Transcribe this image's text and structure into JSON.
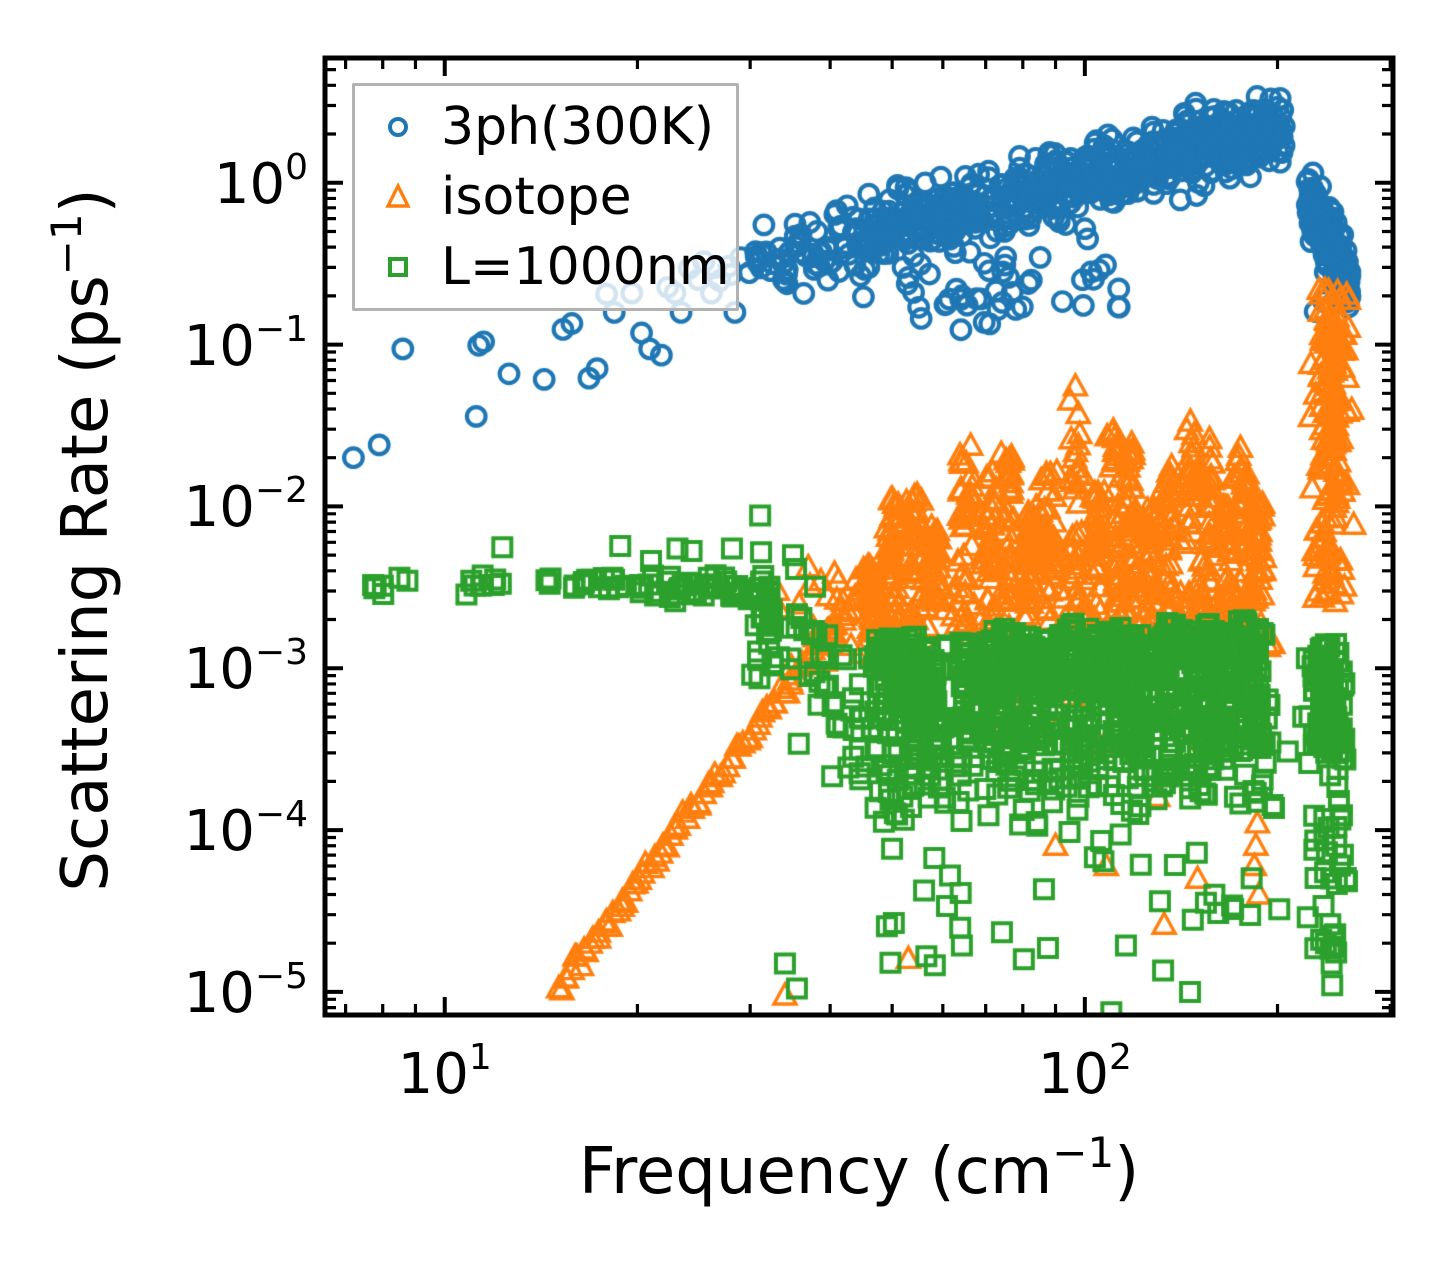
{
  "chart_data": {
    "type": "scatter",
    "title": "",
    "xlabel": {
      "text": "Frequency (cm",
      "sup": "−1",
      "suffix": ")"
    },
    "ylabel": {
      "text": "Scattering Rate (ps",
      "sup": "−1",
      "suffix": ")"
    },
    "x_axis": {
      "scale": "log",
      "min": 6.5,
      "max": 303,
      "major_ticks": [
        10,
        100
      ],
      "major_tick_labels": [
        {
          "base": "10",
          "exp": "1"
        },
        {
          "base": "10",
          "exp": "2"
        }
      ],
      "minor_ticks": [
        7,
        8,
        9,
        20,
        30,
        40,
        50,
        60,
        70,
        80,
        90,
        200,
        300
      ]
    },
    "y_axis": {
      "scale": "log",
      "min": 7.2e-06,
      "max": 5.9,
      "major_ticks": [
        1,
        0.1,
        0.01,
        0.001,
        0.0001,
        1e-05
      ],
      "major_tick_labels": [
        {
          "base": "10",
          "exp": "0"
        },
        {
          "base": "10",
          "exp": "−1"
        },
        {
          "base": "10",
          "exp": "−2"
        },
        {
          "base": "10",
          "exp": "−3"
        },
        {
          "base": "10",
          "exp": "−4"
        },
        {
          "base": "10",
          "exp": "−5"
        }
      ],
      "minor_mantissas": [
        2,
        3,
        4,
        5,
        6,
        7,
        8,
        9
      ]
    },
    "legend": {
      "position": "upper-left",
      "entries": [
        "3ph(300K)",
        "isotope",
        "L=1000nm"
      ]
    },
    "series": [
      {
        "name": "3ph(300K)",
        "marker": "circle",
        "color": "#1f77b4",
        "points": [
          [
            7.2,
            0.02
          ],
          [
            7.9,
            0.024
          ],
          [
            8.6,
            0.094
          ],
          [
            11.2,
            0.036
          ],
          [
            11.3,
            0.099
          ],
          [
            11.5,
            0.104
          ],
          [
            12.6,
            0.066
          ],
          [
            14.3,
            0.061
          ],
          [
            15.3,
            0.124
          ],
          [
            15.8,
            0.135
          ],
          [
            16.8,
            0.062
          ],
          [
            17.3,
            0.071
          ],
          [
            17.9,
            0.205
          ],
          [
            18.4,
            0.158
          ],
          [
            19.6,
            0.208
          ],
          [
            20.3,
            0.118
          ],
          [
            20.9,
            0.094
          ],
          [
            21.8,
            0.086
          ],
          [
            22.3,
            0.226
          ],
          [
            22.9,
            0.208
          ],
          [
            23.4,
            0.158
          ],
          [
            24.1,
            0.295
          ],
          [
            24.9,
            0.252
          ],
          [
            25.4,
            0.325
          ],
          [
            26.1,
            0.208
          ],
          [
            26.5,
            0.3
          ],
          [
            26.9,
            0.248
          ],
          [
            27.8,
            0.305
          ],
          [
            28.0,
            0.27
          ],
          [
            28.4,
            0.158
          ],
          [
            29.0,
            0.345
          ],
          [
            29.9,
            0.278
          ],
          [
            30.6,
            0.375
          ],
          [
            31.2,
            0.298
          ],
          [
            52,
            0.3
          ],
          [
            53,
            0.26
          ],
          [
            54,
            0.21
          ],
          [
            55,
            0.17
          ],
          [
            55.5,
            0.145
          ],
          [
            63,
            0.22
          ],
          [
            64,
            0.19
          ],
          [
            75,
            0.31
          ],
          [
            76,
            0.26
          ],
          [
            77,
            0.21
          ],
          [
            78,
            0.165
          ],
          [
            100,
            0.52
          ],
          [
            101,
            0.45
          ],
          [
            229,
            0.16
          ],
          [
            236,
            0.185
          ],
          [
            242,
            0.175
          ]
        ],
        "clusters": [
          {
            "kind": "band",
            "n": 650,
            "f": [
              30,
              205
            ],
            "logr": [
              -0.52,
              0.35
            ],
            "bias": 0.7,
            "sigma": 0.11
          },
          {
            "kind": "uniform",
            "n": 28,
            "f": [
              45,
              115
            ],
            "logr": [
              -0.78,
              -0.45
            ]
          },
          {
            "kind": "uniform",
            "n": 6,
            "f": [
              60,
              82
            ],
            "logr": [
              -0.92,
              -0.72
            ]
          },
          {
            "kind": "band",
            "n": 150,
            "f": [
              222,
              260
            ],
            "logr": [
              -0.06,
              -0.66
            ],
            "bias": 0.9,
            "sigma": 0.11
          }
        ]
      },
      {
        "name": "isotope",
        "marker": "triangle",
        "color": "#ff7f0e",
        "points": [
          [
            53,
            1.6e-05
          ],
          [
            34,
            9.5e-06
          ],
          [
            90,
            8e-05
          ],
          [
            108,
            6e-05
          ],
          [
            130,
            0.00016
          ],
          [
            133,
            2.6e-05
          ],
          [
            150,
            5e-05
          ],
          [
            184,
            6e-05
          ],
          [
            185,
            8e-05
          ],
          [
            186,
            0.00011
          ],
          [
            187,
            4e-05
          ],
          [
            176,
            0.0009
          ]
        ],
        "clusters": [
          {
            "kind": "line",
            "n": 95,
            "f": [
              15,
              46
            ],
            "logr": [
              -4.97,
              -2.45
            ],
            "sigma": 0.025
          },
          {
            "kind": "uniform",
            "n": 28,
            "f": [
              33,
              52
            ],
            "logr": [
              -3.1,
              -2.35
            ]
          },
          {
            "kind": "columns",
            "n_each": 38,
            "fjit": 0.006,
            "pow": 0.7,
            "items": [
              [
                46.5,
                -2.75,
                -2.35
              ],
              [
                50,
                -2.8,
                -1.93
              ],
              [
                54,
                -2.85,
                -1.92
              ],
              [
                58,
                -2.8,
                -2.1
              ],
              [
                65,
                -2.85,
                -1.62
              ],
              [
                71,
                -2.8,
                -1.75
              ],
              [
                76,
                -2.8,
                -1.64
              ],
              [
                82,
                -2.75,
                -2.0
              ],
              [
                88,
                -2.8,
                -1.78
              ],
              [
                97,
                -2.9,
                -1.24
              ],
              [
                104,
                -2.8,
                -1.9
              ],
              [
                112,
                -2.85,
                -1.52
              ],
              [
                118,
                -2.8,
                -1.6
              ],
              [
                127,
                -2.85,
                -2.0
              ],
              [
                136,
                -2.8,
                -1.75
              ],
              [
                147,
                -2.9,
                -1.45
              ],
              [
                156,
                -2.85,
                -1.52
              ],
              [
                166,
                -2.8,
                -2.0
              ],
              [
                176,
                -2.85,
                -1.62
              ],
              [
                186,
                -2.6,
                -1.95
              ]
            ]
          },
          {
            "kind": "uniform",
            "n": 120,
            "f": [
              46,
              200
            ],
            "logr": [
              -3.0,
              -2.45
            ]
          },
          {
            "kind": "uniform",
            "n": 25,
            "f": [
              50,
              200
            ],
            "logr": [
              -3.5,
              -3.0
            ]
          },
          {
            "kind": "column",
            "fc": 242,
            "fjit": 0.014,
            "n": 140,
            "logr": [
              -2.2,
              -0.63
            ],
            "pow": 0.65
          },
          {
            "kind": "uniform",
            "n": 30,
            "f": [
              228,
              256
            ],
            "logr": [
              -2.6,
              -2.1
            ]
          }
        ]
      },
      {
        "name": "L=1000nm",
        "marker": "square",
        "color": "#2ca02c",
        "points": [
          [
            12.3,
            0.0056
          ],
          [
            18.8,
            0.0057
          ],
          [
            21.0,
            0.0046
          ],
          [
            23.1,
            0.0055
          ],
          [
            24.3,
            0.0053
          ],
          [
            28.1,
            0.0055
          ],
          [
            31.2,
            0.0052
          ],
          [
            35.0,
            0.005
          ],
          [
            34,
            1.5e-05
          ],
          [
            35.5,
            1.05e-05
          ],
          [
            234,
            2.1e-05
          ],
          [
            236,
            3.4e-05
          ],
          [
            238,
            2e-05
          ],
          [
            242,
            1.85e-05
          ],
          [
            243,
            1.5e-05
          ],
          [
            243.5,
            1.1e-05
          ],
          [
            245,
            1.9e-05
          ],
          [
            247,
            1.75e-05
          ],
          [
            110,
            7.5e-06
          ],
          [
            146,
            1e-05
          ]
        ],
        "clusters": [
          {
            "kind": "band",
            "n": 7,
            "f": [
              7.1,
              8.8
            ],
            "logr": [
              -2.47,
              -2.49
            ],
            "bias": 1,
            "sigma": 0.035
          },
          {
            "kind": "band",
            "n": 8,
            "f": [
              10.8,
              12.4
            ],
            "logr": [
              -2.48,
              -2.48
            ],
            "bias": 1,
            "sigma": 0.03
          },
          {
            "kind": "band",
            "n": 16,
            "f": [
              14.4,
              19.2
            ],
            "logr": [
              -2.47,
              -2.48
            ],
            "bias": 1,
            "sigma": 0.025
          },
          {
            "kind": "band",
            "n": 45,
            "f": [
              19.8,
              33
            ],
            "logr": [
              -2.48,
              -2.53
            ],
            "bias": 1,
            "sigma": 0.04
          },
          {
            "kind": "band",
            "n": 70,
            "f": [
              30,
              45
            ],
            "logr": [
              -2.55,
              -3.35
            ],
            "bias": 1,
            "sigma": 0.22
          },
          {
            "kind": "column",
            "fc": 50,
            "fjit": 0.02,
            "n": 70,
            "logr": [
              -4.1,
              -2.8
            ],
            "pow": 0.5
          },
          {
            "kind": "columns",
            "n_each": 48,
            "fjit": 0.01,
            "pow": 0.55,
            "items": [
              [
                54,
                -3.9,
                -2.82
              ],
              [
                58,
                -3.8,
                -2.85
              ],
              [
                65,
                -3.9,
                -2.78
              ],
              [
                71,
                -3.85,
                -2.8
              ],
              [
                76,
                -3.8,
                -2.75
              ],
              [
                82,
                -3.9,
                -2.8
              ],
              [
                88,
                -3.85,
                -2.78
              ],
              [
                97,
                -3.9,
                -2.72
              ],
              [
                104,
                -3.8,
                -2.78
              ],
              [
                112,
                -3.85,
                -2.75
              ],
              [
                118,
                -3.8,
                -2.78
              ],
              [
                127,
                -3.9,
                -2.8
              ],
              [
                136,
                -3.85,
                -2.72
              ],
              [
                147,
                -3.9,
                -2.75
              ],
              [
                156,
                -3.8,
                -2.72
              ],
              [
                166,
                -3.85,
                -2.78
              ],
              [
                176,
                -3.8,
                -2.7
              ],
              [
                186,
                -3.9,
                -2.75
              ]
            ]
          },
          {
            "kind": "uniform",
            "n": 90,
            "f": [
              46,
              210
            ],
            "logr": [
              -4.4,
              -3.0
            ]
          },
          {
            "kind": "uniform",
            "n": 26,
            "f": [
              48,
              260
            ],
            "logr": [
              -4.95,
              -4.4
            ]
          },
          {
            "kind": "column",
            "fc": 240,
            "fjit": 0.015,
            "n": 95,
            "logr": [
              -3.65,
              -2.84
            ],
            "pow": 0.8
          },
          {
            "kind": "uniform",
            "n": 22,
            "f": [
              228,
              258
            ],
            "logr": [
              -4.4,
              -3.65
            ]
          }
        ]
      }
    ],
    "style_colors": {
      "axes": "#000000",
      "legend_border": "#b2b2b2"
    }
  }
}
